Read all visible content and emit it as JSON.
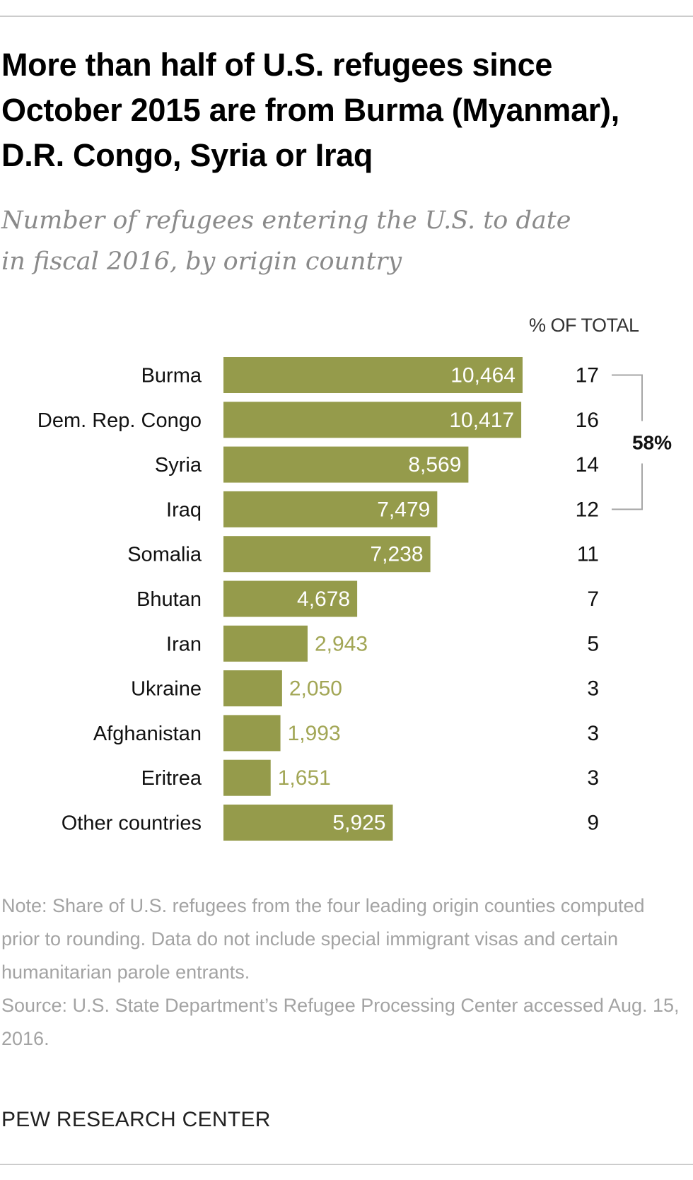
{
  "title": "More than half of U.S. refugees since October 2015 are from Burma (Myanmar), D.R. Congo, Syria or Iraq",
  "subtitle_lines": [
    "Number of refugees entering the U.S. to date",
    "in fiscal 2016, by origin country"
  ],
  "pct_header": "% OF TOTAL",
  "chart_data": {
    "type": "bar",
    "orientation": "horizontal",
    "categories": [
      "Burma",
      "Dem. Rep. Congo",
      "Syria",
      "Iraq",
      "Somalia",
      "Bhutan",
      "Iran",
      "Ukraine",
      "Afghanistan",
      "Eritrea",
      "Other countries"
    ],
    "values": [
      10464,
      10417,
      8569,
      7479,
      7238,
      4678,
      2943,
      2050,
      1993,
      1651,
      5925
    ],
    "value_labels": [
      "10,464",
      "10,417",
      "8,569",
      "7,479",
      "7,238",
      "4,678",
      "2,943",
      "2,050",
      "1,993",
      "1,651",
      "5,925"
    ],
    "pct_of_total": [
      "17",
      "16",
      "14",
      "12",
      "11",
      "7",
      "5",
      "3",
      "3",
      "3",
      "9"
    ],
    "bracket_label": "58%",
    "bracket_categories": [
      "Burma",
      "Dem. Rep. Congo",
      "Syria",
      "Iraq"
    ],
    "xlim": [
      0,
      10464
    ],
    "colors": {
      "bar": "#959b4b",
      "outside_label": "#a2a655",
      "bracket": "#a6a6a6"
    }
  },
  "notes": [
    "Note: Share of U.S. refugees from the four leading origin counties computed prior to rounding. Data do not include special immigrant visas and certain humanitarian parole entrants.",
    "Source: U.S. State Department’s Refugee Processing Center accessed Aug. 15, 2016."
  ],
  "credit": "PEW RESEARCH CENTER"
}
